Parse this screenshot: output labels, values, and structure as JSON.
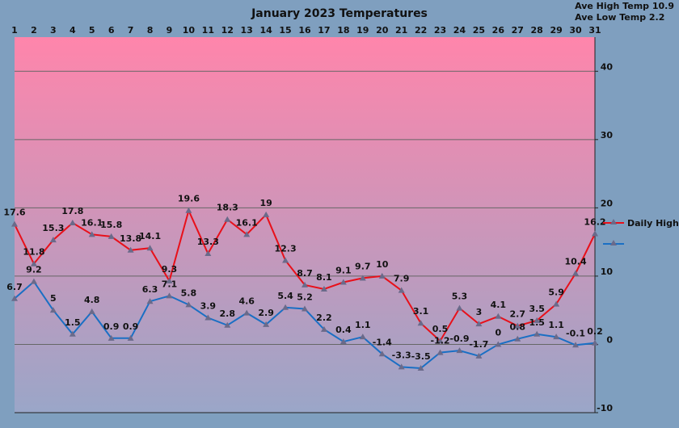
{
  "chart_data": {
    "type": "line",
    "title": "January 2023 Temperatures",
    "stats": [
      "Ave High Temp 10.9",
      "Ave Low Temp 2.2"
    ],
    "x": [
      1,
      2,
      3,
      4,
      5,
      6,
      7,
      8,
      9,
      10,
      11,
      12,
      13,
      14,
      15,
      16,
      17,
      18,
      19,
      20,
      21,
      22,
      23,
      24,
      25,
      26,
      27,
      28,
      29,
      30,
      31
    ],
    "ylim": [
      -10,
      45
    ],
    "yticks": [
      40,
      30,
      20,
      10,
      0,
      -10
    ],
    "grid": true,
    "legend_position": "right",
    "series": [
      {
        "name": "Daily High",
        "color": "#e8101a",
        "values": [
          17.6,
          11.8,
          15.3,
          17.8,
          16.1,
          15.8,
          13.8,
          14.1,
          9.3,
          19.6,
          13.3,
          18.3,
          16.1,
          19,
          12.3,
          8.7,
          8.1,
          9.1,
          9.7,
          10,
          7.9,
          3.1,
          0.5,
          5.3,
          3,
          4.1,
          2.7,
          3.5,
          5.9,
          10.4,
          16.2
        ]
      },
      {
        "name": "",
        "color": "#1a6fc4",
        "values": [
          6.7,
          9.2,
          5,
          1.5,
          4.8,
          0.9,
          0.9,
          6.3,
          7.1,
          5.8,
          3.9,
          2.8,
          4.6,
          2.9,
          5.4,
          5.2,
          2.2,
          0.4,
          1.1,
          -1.4,
          -3.3,
          -3.5,
          -1.2,
          -0.9,
          -1.7,
          0,
          0.8,
          1.5,
          1.1,
          -0.1,
          0.2
        ]
      }
    ],
    "background_gradient": [
      "#ff85ab",
      "#9aa6c8"
    ],
    "marker_color": "#6a6a8a"
  }
}
